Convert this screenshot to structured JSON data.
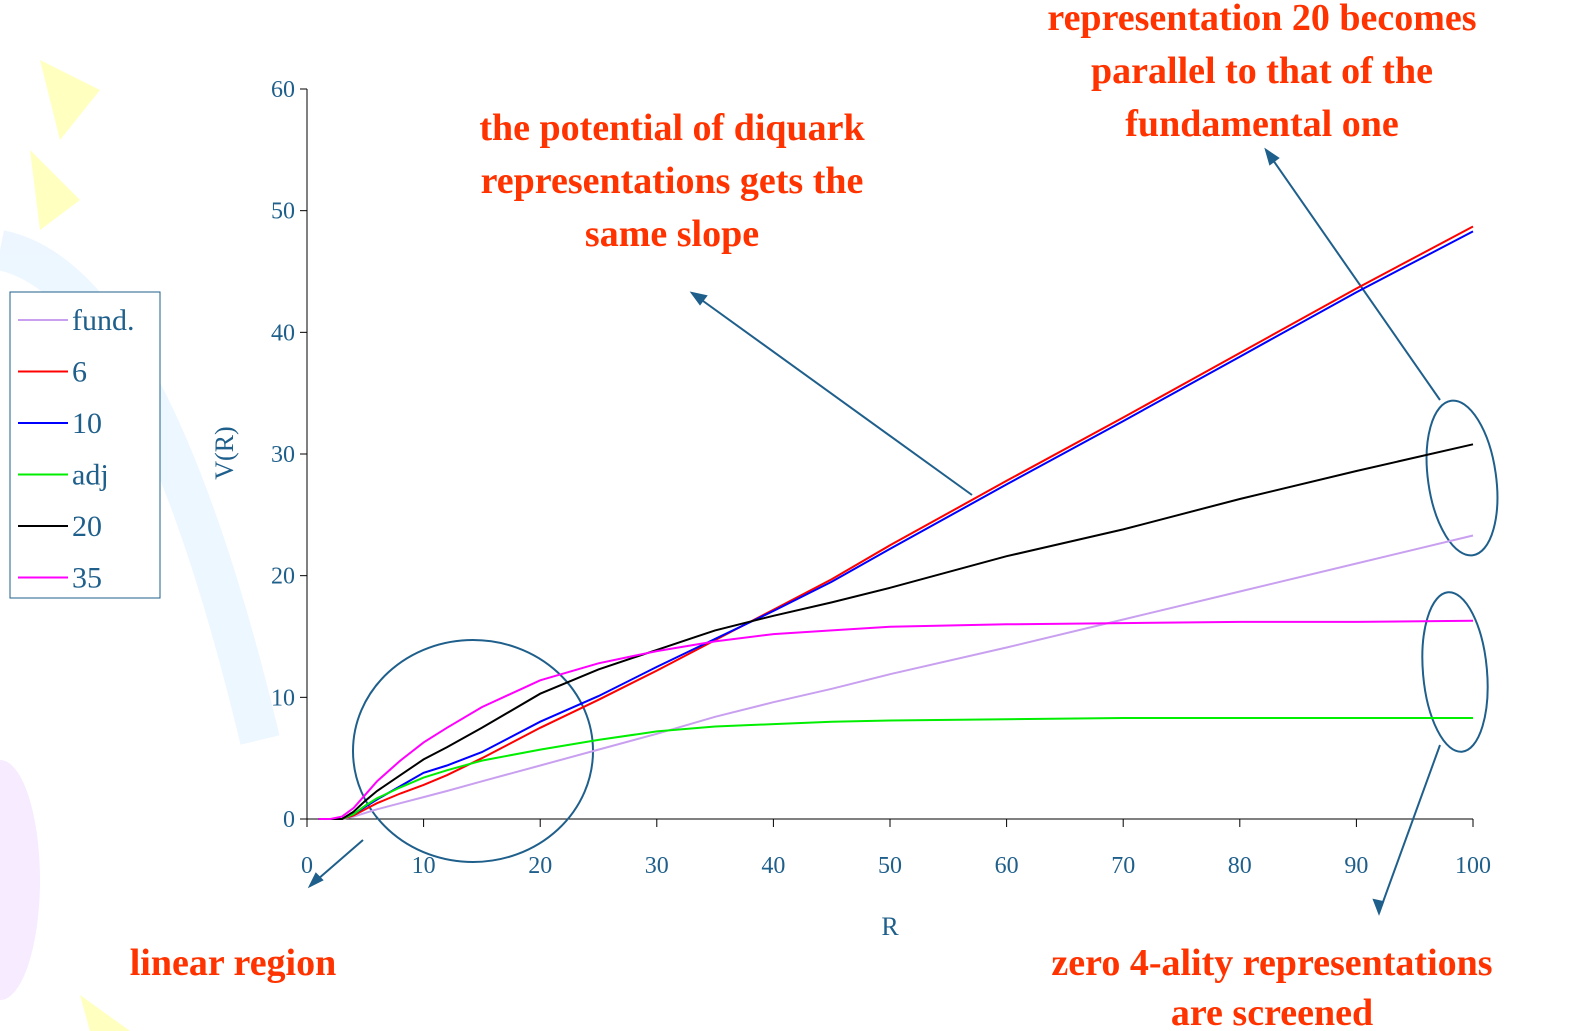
{
  "chart_data": {
    "type": "line",
    "x_label": "R",
    "y_label": "V(R)",
    "x": [
      1,
      2,
      3,
      4,
      5,
      6,
      8,
      10,
      12,
      15,
      20,
      25,
      30,
      35,
      40,
      45,
      50,
      60,
      70,
      80,
      90,
      100
    ],
    "series": [
      {
        "name": "fund.",
        "color": "#c9a0f0",
        "values": [
          0,
          0,
          0,
          0.2,
          0.5,
          0.8,
          1.3,
          1.8,
          2.3,
          3.1,
          4.4,
          5.7,
          7,
          8.4,
          9.6,
          10.7,
          11.9,
          14.1,
          16.4,
          18.7,
          21,
          23.3
        ]
      },
      {
        "name": "6",
        "color": "#ff0000",
        "values": [
          0,
          0,
          0,
          0.3,
          0.8,
          1.3,
          2.1,
          2.8,
          3.6,
          5,
          7.5,
          9.8,
          12.2,
          14.7,
          17.2,
          19.7,
          22.5,
          27.8,
          33,
          38.3,
          43.6,
          48.7
        ]
      },
      {
        "name": "10",
        "color": "#0000ff",
        "values": [
          0,
          0,
          0,
          0.4,
          1,
          1.6,
          2.7,
          3.8,
          4.4,
          5.5,
          8,
          10.1,
          12.5,
          14.8,
          17.1,
          19.5,
          22.2,
          27.5,
          32.7,
          38,
          43.3,
          48.3
        ]
      },
      {
        "name": "adj",
        "color": "#00ee00",
        "values": [
          0,
          0,
          0,
          0.4,
          1.1,
          1.7,
          2.6,
          3.4,
          4,
          4.8,
          5.7,
          6.5,
          7.2,
          7.6,
          7.8,
          8,
          8.1,
          8.2,
          8.3,
          8.3,
          8.3,
          8.3
        ]
      },
      {
        "name": "20",
        "color": "#000000",
        "values": [
          0,
          0,
          0,
          0.6,
          1.5,
          2.3,
          3.6,
          4.9,
          5.9,
          7.5,
          10.3,
          12.3,
          13.9,
          15.5,
          16.7,
          17.8,
          19,
          21.6,
          23.8,
          26.3,
          28.6,
          30.8
        ]
      },
      {
        "name": "35",
        "color": "#ff00ff",
        "values": [
          0,
          0,
          0.2,
          0.9,
          2,
          3.1,
          4.8,
          6.3,
          7.5,
          9.2,
          11.4,
          12.8,
          13.8,
          14.6,
          15.2,
          15.5,
          15.8,
          16,
          16.1,
          16.2,
          16.2,
          16.3
        ]
      }
    ],
    "xlim": [
      0,
      100
    ],
    "xticks": [
      0,
      10,
      20,
      30,
      40,
      50,
      60,
      70,
      80,
      90,
      100
    ],
    "ylim": [
      0,
      60
    ],
    "yticks": [
      0,
      10,
      20,
      30,
      40,
      50,
      60
    ],
    "grid": false,
    "legend": "left",
    "annotations": [
      {
        "lines": [
          "the potential of diquark",
          "representations gets the",
          "same slope"
        ]
      },
      {
        "lines": [
          "representation 20 becomes",
          "parallel to that of the",
          "fundamental one"
        ]
      },
      {
        "lines": [
          "linear region"
        ]
      },
      {
        "lines": [
          "zero 4-ality representations",
          "are screened"
        ]
      }
    ]
  }
}
